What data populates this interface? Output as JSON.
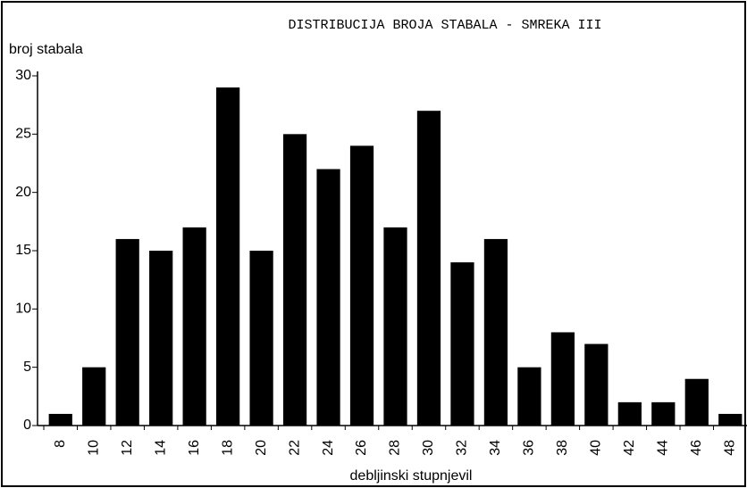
{
  "chart_data": {
    "type": "bar",
    "title": "DISTRIBUCIJA BROJA STABALA - SMREKA III",
    "y_label": "broj stabala",
    "x_label": "debljinski stupnjevil",
    "categories": [
      "8",
      "10",
      "12",
      "14",
      "16",
      "18",
      "20",
      "22",
      "24",
      "26",
      "28",
      "30",
      "32",
      "34",
      "36",
      "38",
      "40",
      "42",
      "44",
      "46",
      "48"
    ],
    "values": [
      1,
      5,
      16,
      15,
      17,
      29,
      15,
      25,
      22,
      24,
      17,
      27,
      14,
      16,
      5,
      8,
      7,
      2,
      2,
      4,
      1
    ],
    "color": "#000000",
    "ylim": [
      0,
      30
    ],
    "yticks": [
      0,
      5,
      10,
      15,
      20,
      25,
      30
    ],
    "grid": false
  }
}
